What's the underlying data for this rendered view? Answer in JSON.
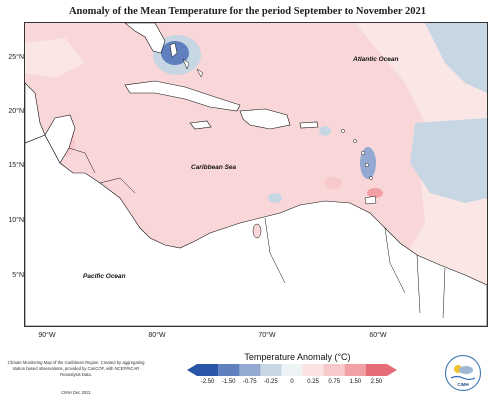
{
  "map": {
    "title": "Anomaly of the Mean Temperature for the period September to November 2021",
    "lat_labels": [
      "25°N",
      "20°N",
      "15°N",
      "10°N",
      "5°N"
    ],
    "lon_labels": [
      "90°W",
      "80°W",
      "70°W",
      "60°W"
    ],
    "region_labels": {
      "atlantic": "Atlantic Ocean",
      "caribbean": "Caribbean Sea",
      "pacific": "Pacific Ocean"
    }
  },
  "legend": {
    "title": "Temperature Anomaly (°C)",
    "ticks": [
      "-2.50",
      "-1.50",
      "-0.75",
      "-0.25",
      "0",
      "0.25",
      "0.75",
      "1.50",
      "2.50"
    ],
    "colors": [
      "#2b55a6",
      "#5f7fbf",
      "#93a9d2",
      "#c7d6e3",
      "#eef3f6",
      "#fbe3e3",
      "#f7c9cb",
      "#f2a0a6",
      "#e56d78"
    ]
  },
  "footer": {
    "description": "Climate Monitoring Map of the Caribbean Region. Created by aggregating station based observations, provided by CariCOF, with NCEP/NCAR Reanalysis Data.",
    "credit": "CIMH Dec 2021"
  },
  "logo": {
    "text": "CIMH"
  }
}
